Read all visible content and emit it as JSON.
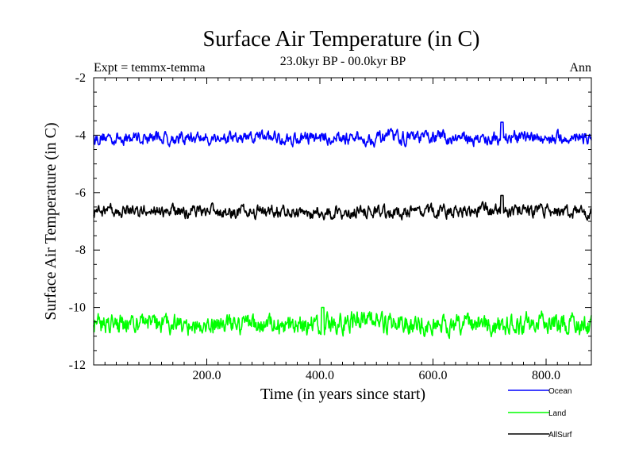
{
  "chart_data": {
    "type": "line",
    "title": "Surface Air Temperature (in C)",
    "subtitle": "23.0kyr BP - 00.0kyr BP",
    "left_annotation": "Expt = temmx-temma",
    "right_annotation": "Ann",
    "xlabel": "Time (in years since start)",
    "ylabel": "Surface Air Temperature (in C)",
    "xlim": [
      0,
      880
    ],
    "ylim": [
      -12,
      -2
    ],
    "x_ticks": [
      200,
      400,
      600,
      800
    ],
    "x_tick_labels": [
      "200.0",
      "400.0",
      "600.0",
      "800.0"
    ],
    "y_ticks": [
      -12,
      -10,
      -8,
      -6,
      -4,
      -2
    ],
    "y_tick_labels": [
      "-12",
      "-10",
      "-8",
      "-6",
      "-4",
      "-2"
    ],
    "n_points": 881,
    "series": [
      {
        "name": "Ocean",
        "color": "#0000ff",
        "mean": -4.1,
        "noise_amplitude": 0.22,
        "min": -4.6,
        "max": -3.5,
        "peak_x": 722,
        "peak_value": -3.55
      },
      {
        "name": "Land",
        "color": "#00ff00",
        "mean": -10.6,
        "noise_amplitude": 0.35,
        "min": -11.4,
        "max": -10.0,
        "peak_x": 405,
        "peak_value": -10.0
      },
      {
        "name": "AllSurf",
        "color": "#000000",
        "mean": -6.65,
        "noise_amplitude": 0.22,
        "min": -7.2,
        "max": -6.1,
        "peak_x": 722,
        "peak_value": -6.1
      }
    ],
    "legend": [
      {
        "label": "Ocean",
        "color": "#0000ff"
      },
      {
        "label": "Land",
        "color": "#00ff00"
      },
      {
        "label": "AllSurf",
        "color": "#000000"
      }
    ],
    "legend_position": "bottom-right, below plot"
  }
}
